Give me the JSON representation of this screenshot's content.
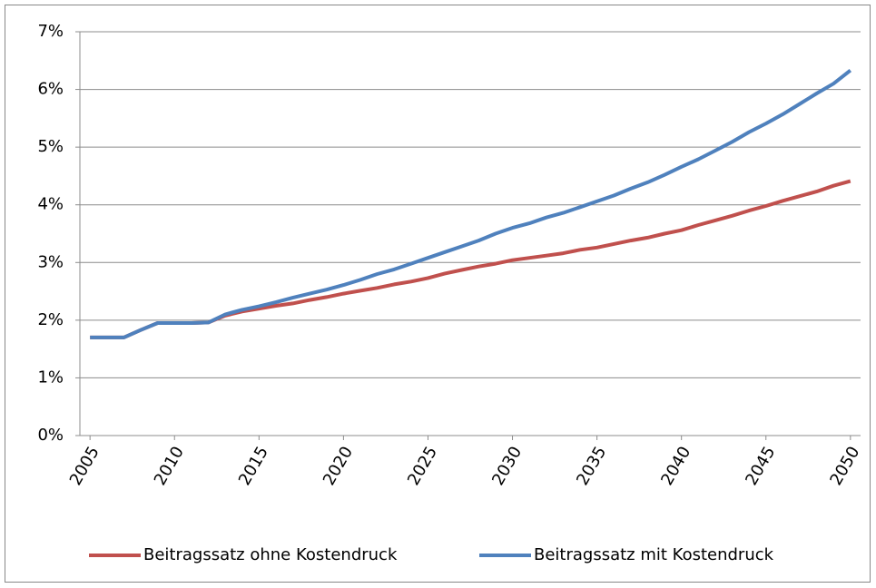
{
  "chart_data": {
    "type": "line",
    "x": [
      2005,
      2006,
      2007,
      2008,
      2009,
      2010,
      2011,
      2012,
      2013,
      2014,
      2015,
      2016,
      2017,
      2018,
      2019,
      2020,
      2021,
      2022,
      2023,
      2024,
      2025,
      2026,
      2027,
      2028,
      2029,
      2030,
      2031,
      2032,
      2033,
      2034,
      2035,
      2036,
      2037,
      2038,
      2039,
      2040,
      2041,
      2042,
      2043,
      2044,
      2045,
      2046,
      2047,
      2048,
      2049,
      2050
    ],
    "series": [
      {
        "name": "Beitragssatz ohne Kostendruck",
        "color": "#c0504d",
        "values": [
          1.7,
          1.7,
          1.7,
          1.83,
          1.95,
          1.95,
          1.95,
          1.96,
          2.08,
          2.15,
          2.2,
          2.25,
          2.29,
          2.35,
          2.4,
          2.46,
          2.51,
          2.56,
          2.62,
          2.67,
          2.73,
          2.81,
          2.87,
          2.93,
          2.98,
          3.04,
          3.08,
          3.12,
          3.16,
          3.22,
          3.26,
          3.32,
          3.38,
          3.43,
          3.5,
          3.56,
          3.65,
          3.73,
          3.81,
          3.9,
          3.98,
          4.07,
          4.15,
          4.23,
          4.33,
          4.41
        ]
      },
      {
        "name": "Beitragssatz mit Kostendruck",
        "color": "#4f81bd",
        "values": [
          1.7,
          1.7,
          1.7,
          1.83,
          1.95,
          1.95,
          1.95,
          1.96,
          2.1,
          2.18,
          2.24,
          2.31,
          2.39,
          2.46,
          2.53,
          2.61,
          2.7,
          2.8,
          2.88,
          2.98,
          3.08,
          3.18,
          3.28,
          3.38,
          3.5,
          3.6,
          3.68,
          3.78,
          3.86,
          3.96,
          4.06,
          4.16,
          4.28,
          4.39,
          4.52,
          4.66,
          4.79,
          4.94,
          5.09,
          5.26,
          5.41,
          5.57,
          5.75,
          5.93,
          6.1,
          6.33
        ]
      }
    ],
    "xlim": [
      2004.4,
      2050.6
    ],
    "xticks": [
      2005,
      2010,
      2015,
      2020,
      2025,
      2030,
      2035,
      2040,
      2045,
      2050
    ],
    "ylim": [
      0,
      7
    ],
    "yticks": [
      {
        "value": 0,
        "label": "0%"
      },
      {
        "value": 1,
        "label": "1%"
      },
      {
        "value": 2,
        "label": "2%"
      },
      {
        "value": 3,
        "label": "3%"
      },
      {
        "value": 4,
        "label": "4%"
      },
      {
        "value": 5,
        "label": "5%"
      },
      {
        "value": 6,
        "label": "6%"
      },
      {
        "value": 7,
        "label": "7%"
      }
    ],
    "grid": true,
    "legend": "bottom"
  }
}
